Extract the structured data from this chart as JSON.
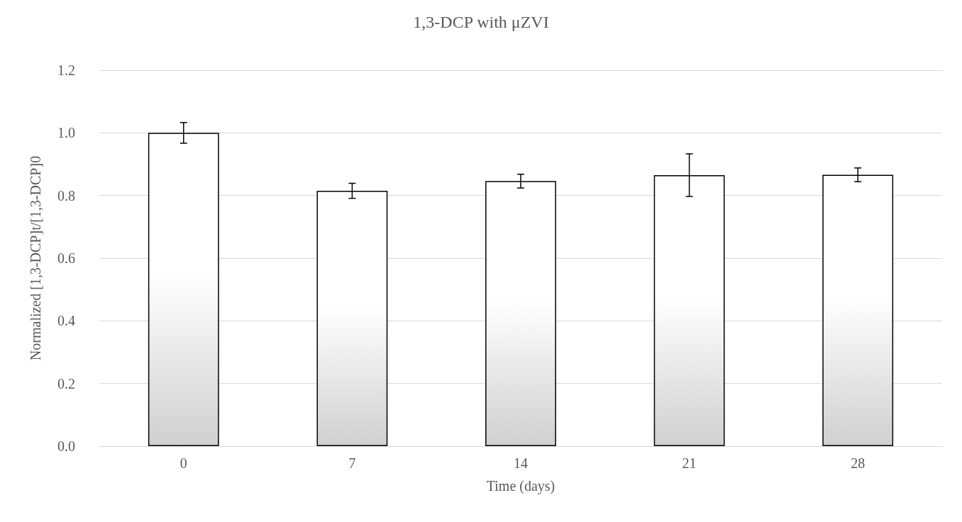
{
  "chart_data": {
    "type": "bar",
    "title": "1,3-DCP with μZVI",
    "xlabel": "Time (days)",
    "ylabel": "Normalized [1,3-DCP]t/[1,3-DCP]0",
    "categories": [
      "0",
      "7",
      "14",
      "21",
      "28"
    ],
    "values": [
      1.0,
      0.815,
      0.846,
      0.865,
      0.866
    ],
    "errors": [
      0.033,
      0.024,
      0.022,
      0.068,
      0.022
    ],
    "ylim": [
      0,
      1.2
    ],
    "yticks": [
      {
        "value": 0,
        "label": "0.0"
      },
      {
        "value": 0.2,
        "label": "0.2"
      },
      {
        "value": 0.4,
        "label": "0.4"
      },
      {
        "value": 0.6,
        "label": "0.6"
      },
      {
        "value": 0.8,
        "label": "0.8"
      },
      {
        "value": 1,
        "label": "1.0"
      },
      {
        "value": 1.2,
        "label": "1.2"
      }
    ],
    "grid": "y"
  }
}
